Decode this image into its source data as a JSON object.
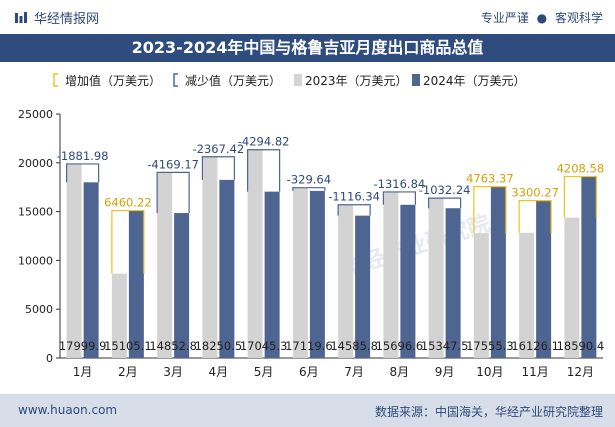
{
  "header": {
    "brand": "华经情报网",
    "tagline_left": "专业严谨",
    "tagline_sep": "●",
    "tagline_right": "客观科学"
  },
  "colors": {
    "series_2023": "#d3d3d3",
    "series_2024": "#4f6591",
    "increase": "#f0c419",
    "decrease": "#4f6591",
    "title_bg": "#2e4d7e"
  },
  "chart_data": {
    "type": "bar",
    "title": "2023-2024年中国与格鲁吉亚月度出口商品总值",
    "categories": [
      "1月",
      "2月",
      "3月",
      "4月",
      "5月",
      "6月",
      "7月",
      "8月",
      "9月",
      "10月",
      "11月",
      "12月"
    ],
    "series": [
      {
        "name": "2023年（万美元）",
        "values": [
          19881.88,
          8644.9,
          19022.0,
          20618.0,
          21340.1,
          17449.2,
          15702.2,
          17013.4,
          16379.7,
          12792.0,
          12825.8,
          14381.8
        ]
      },
      {
        "name": "2024年（万美元）",
        "values": [
          17999.9,
          15105.1,
          14852.8,
          18250.5,
          17045.3,
          17119.6,
          14585.8,
          15696.6,
          15347.5,
          17555.3,
          16126.1,
          18590.4
        ]
      }
    ],
    "change_legend": [
      "增加值（万美元）",
      "减少值（万美元）"
    ],
    "change_values": [
      -1881.98,
      6460.22,
      -4169.17,
      -2367.42,
      -4294.82,
      -329.64,
      -1116.34,
      -1316.84,
      -1032.24,
      4763.37,
      3300.27,
      4208.58
    ],
    "change_labels": [
      "-1881.98",
      "6460.22",
      "-4169.17",
      "-2367.42",
      "-4294.82",
      "-329.64",
      "-1116.34",
      "-1316.84",
      "-1032.24",
      "4763.37",
      "3300.27",
      "4208.58"
    ],
    "value_labels_2024": [
      "17999.9",
      "15105.1",
      "14852.8",
      "18250.5",
      "17045.3",
      "17119.6",
      "14585.8",
      "15696.6",
      "15347.5",
      "17555.3",
      "16126.1",
      "18590.4"
    ],
    "ylim": [
      0,
      25000
    ],
    "yticks": [
      0,
      5000,
      10000,
      15000,
      20000,
      25000
    ],
    "ytick_labels": [
      "0",
      "5000",
      "10000",
      "15000",
      "20000",
      "25000"
    ],
    "legend_position": "top",
    "watermark": "华经产业研究院"
  },
  "footer": {
    "url": "www.huaon.com",
    "source": "数据来源：中国海关，华经产业研究院整理"
  }
}
